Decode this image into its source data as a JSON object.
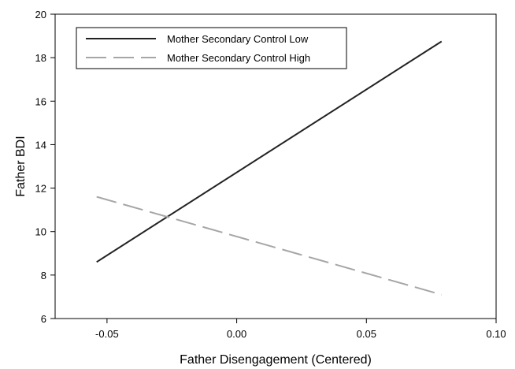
{
  "chart_data": {
    "type": "line",
    "xlabel": "Father Disengagement (Centered)",
    "ylabel": "Father BDI",
    "xlim": [
      -0.07,
      0.1
    ],
    "ylim": [
      6,
      20
    ],
    "xticks": [
      -0.05,
      0.0,
      0.05,
      0.1
    ],
    "xtick_labels": [
      "-0.05",
      "0.00",
      "0.05",
      "0.10"
    ],
    "yticks": [
      6,
      8,
      10,
      12,
      14,
      16,
      18,
      20
    ],
    "ytick_labels": [
      "6",
      "8",
      "10",
      "12",
      "14",
      "16",
      "18",
      "20"
    ],
    "grid": false,
    "legend_position": "top-left",
    "series": [
      {
        "name": "Mother Secondary Control Low",
        "x": [
          -0.054,
          0.079
        ],
        "y": [
          8.6,
          18.75
        ],
        "color": "#222222",
        "style": "solid"
      },
      {
        "name": "Mother Secondary Control High",
        "x": [
          -0.054,
          0.079
        ],
        "y": [
          11.6,
          7.1
        ],
        "color": "#a6a6a6",
        "style": "dashed"
      }
    ]
  }
}
